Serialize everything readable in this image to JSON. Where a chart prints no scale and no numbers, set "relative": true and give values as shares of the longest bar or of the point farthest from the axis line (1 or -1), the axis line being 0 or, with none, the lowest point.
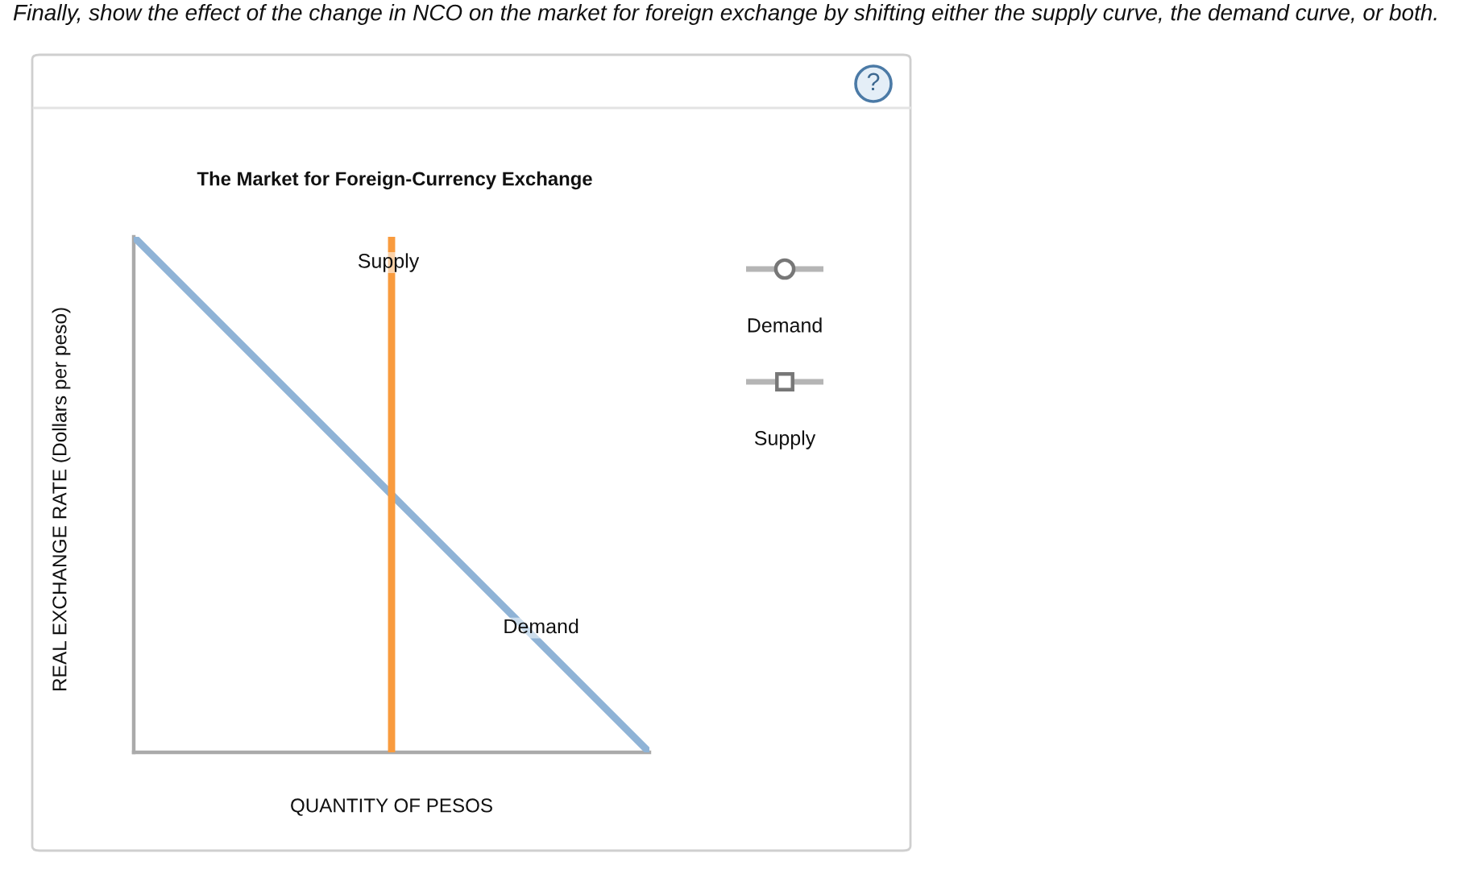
{
  "chart_data": {
    "type": "line",
    "title": "The Market for Foreign-Currency Exchange",
    "xlabel": "QUANTITY OF PESOS",
    "ylabel": "REAL EXCHANGE RATE (Dollars per peso)",
    "relative": true,
    "categories": [
      null,
      null,
      null
    ],
    "series": [
      {
        "name": "Demand",
        "color": "#8fb3d6",
        "values": [
          1,
          0.5,
          0
        ]
      }
    ],
    "annotations": [
      "Finally, show the effect of the change in NCO on the market for foreign exchange by shifting either the supply curve, the demand curve, or both.",
      "Supply",
      "Demand",
      "Supply",
      "?"
    ]
  }
}
